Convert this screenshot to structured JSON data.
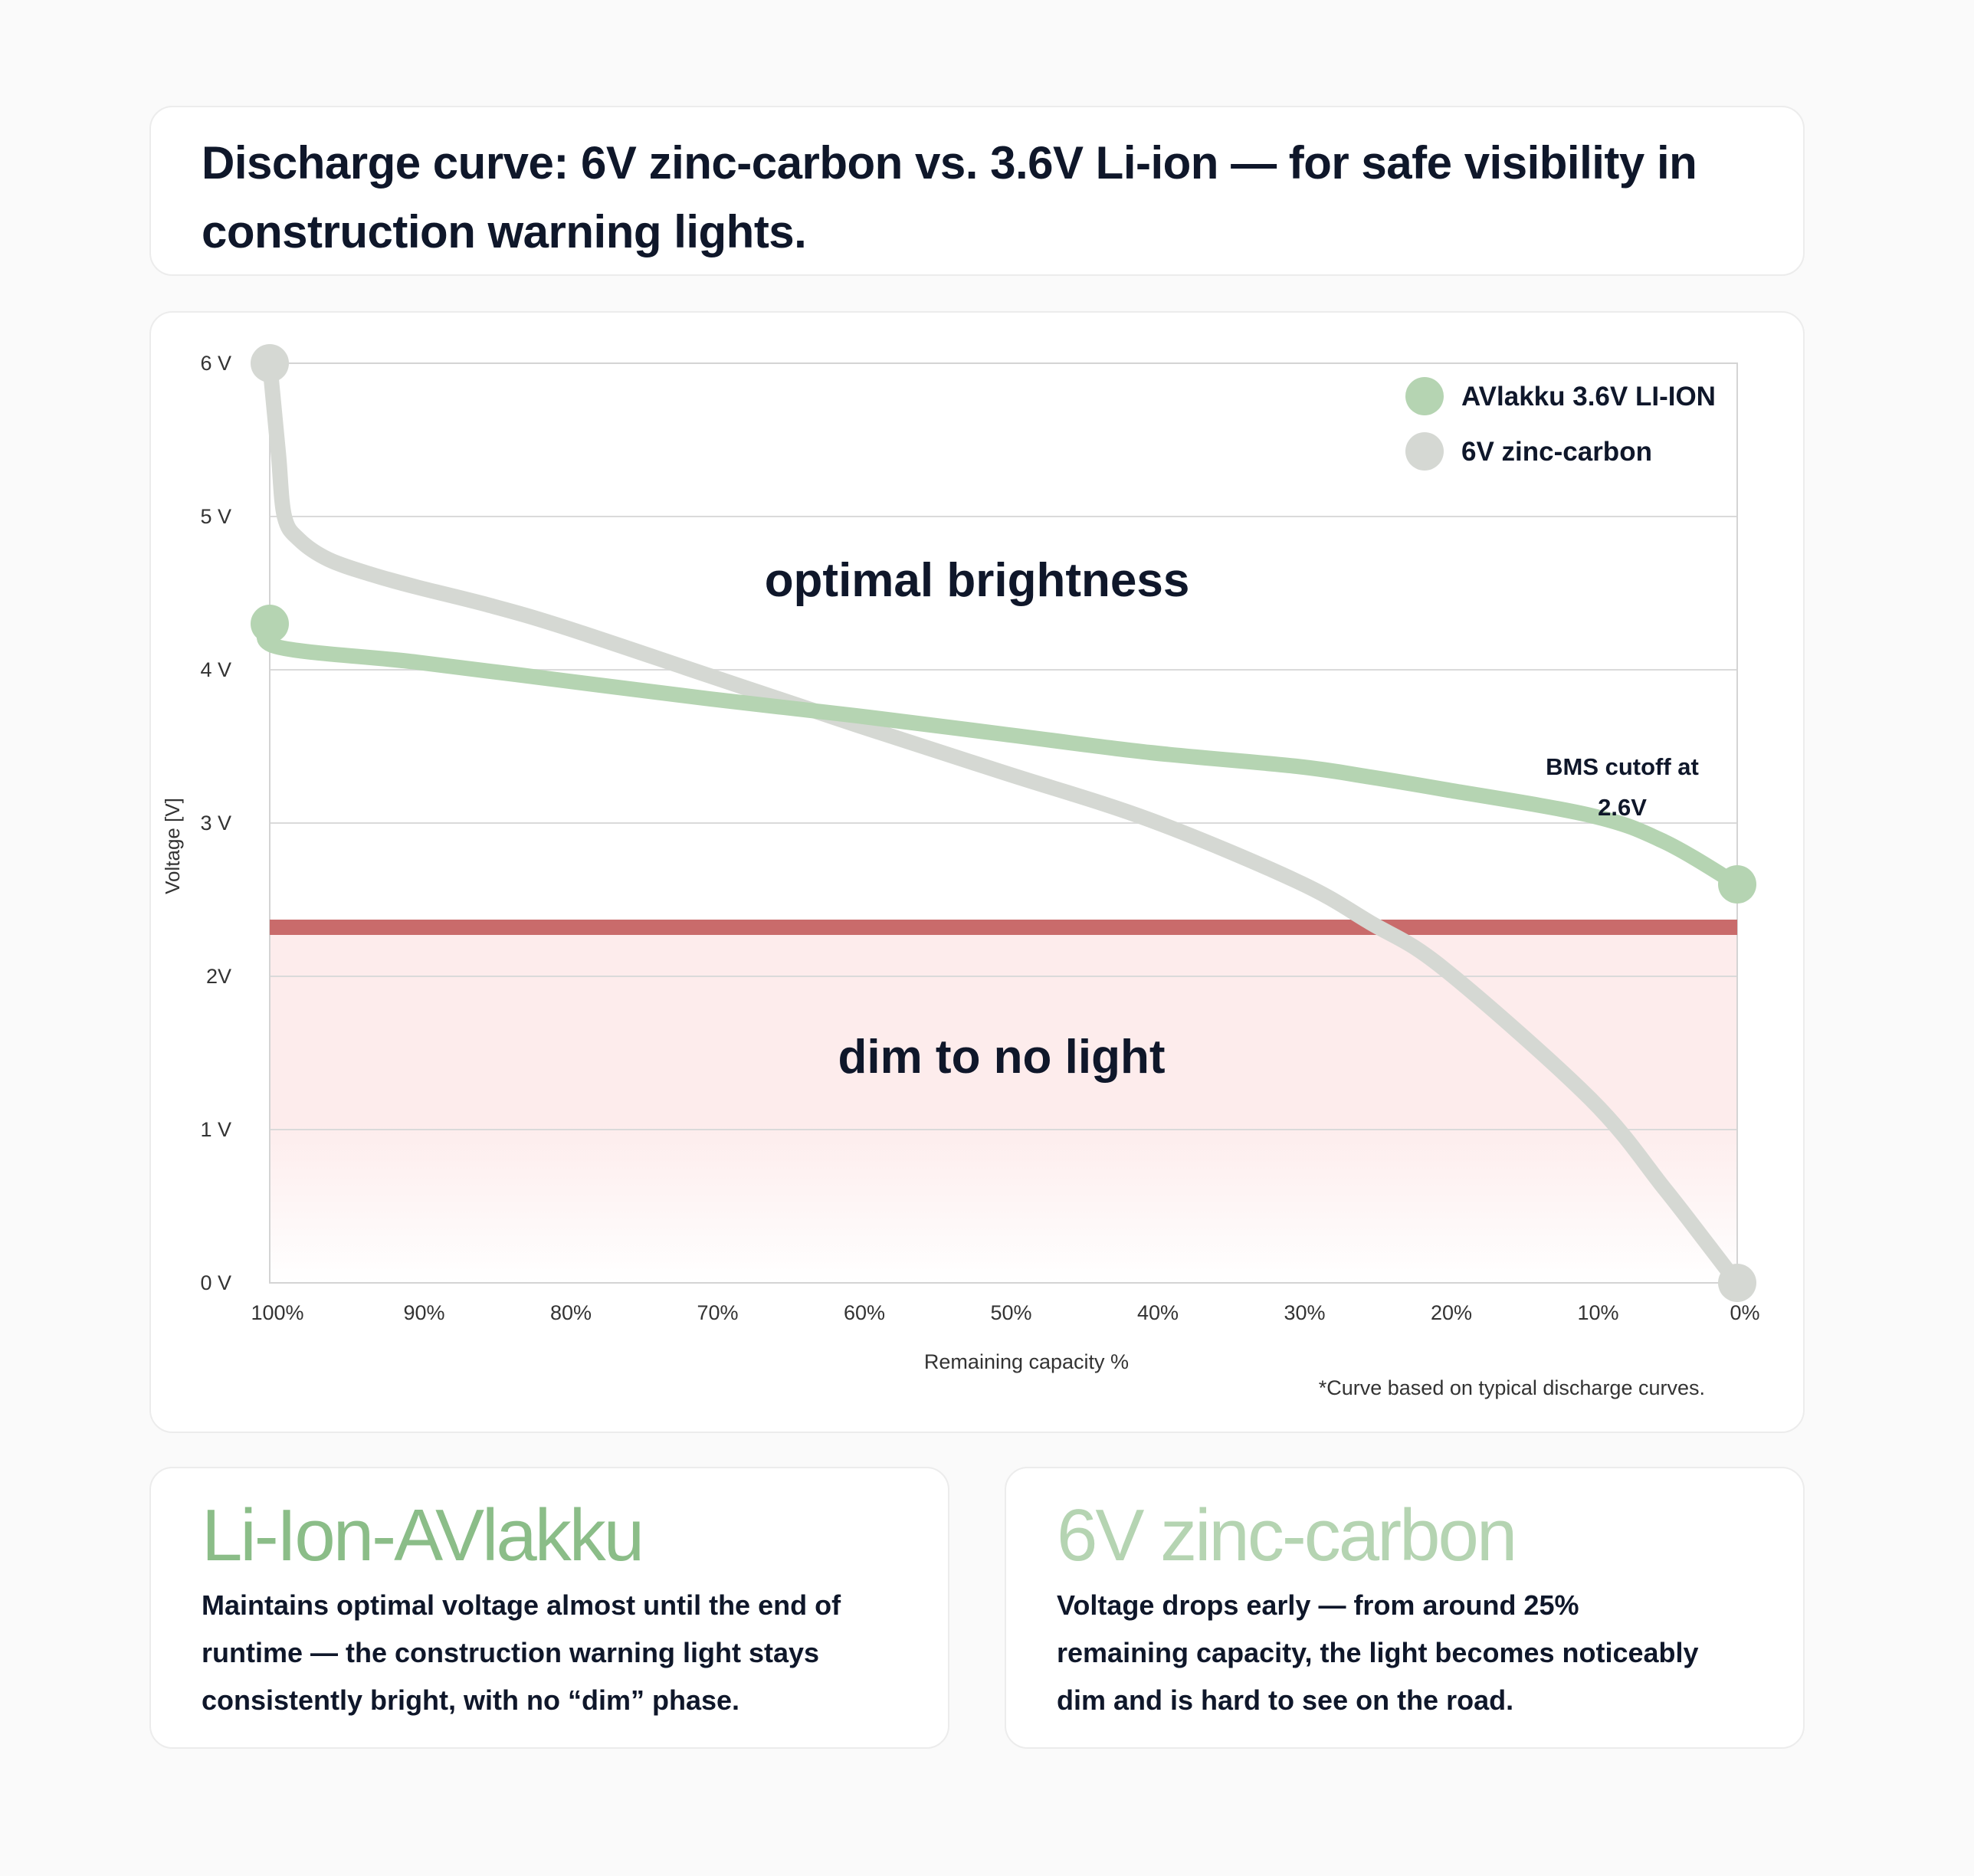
{
  "title": "Discharge curve: 6V zinc-carbon vs. 3.6V Li-ion — for safe visibility in construction warning lights.",
  "chart_data": {
    "type": "line",
    "xlabel": "Remaining capacity %",
    "ylabel": "Voltage [V]",
    "x_ticks": [
      "100%",
      "90%",
      "80%",
      "70%",
      "60%",
      "50%",
      "40%",
      "30%",
      "20%",
      "10%",
      "0%"
    ],
    "y_ticks": [
      {
        "value": 0,
        "label": "0 V"
      },
      {
        "value": 1,
        "label": "1 V"
      },
      {
        "value": 2,
        "label": "2V"
      },
      {
        "value": 3,
        "label": "3 V"
      },
      {
        "value": 4,
        "label": "4 V"
      },
      {
        "value": 5,
        "label": "5 V"
      },
      {
        "value": 6,
        "label": "6 V"
      }
    ],
    "xlim": [
      100,
      0
    ],
    "ylim": [
      0,
      6
    ],
    "grid": true,
    "legend_position": "top-right",
    "series": [
      {
        "name": "AVlakku 3.6V LI-ION",
        "color": "#b5d4b2",
        "x": [
          100,
          99.5,
          90,
          80,
          70,
          60,
          50,
          40,
          30,
          25,
          20,
          10,
          5,
          0
        ],
        "y": [
          4.3,
          4.15,
          4.05,
          3.93,
          3.81,
          3.7,
          3.58,
          3.46,
          3.37,
          3.3,
          3.22,
          3.05,
          2.88,
          2.6
        ]
      },
      {
        "name": "6V zinc-carbon",
        "color": "#d5d8d3",
        "x": [
          100,
          99.8,
          99.4,
          99,
          98,
          96,
          93,
          90,
          85,
          80,
          70,
          60,
          50,
          40,
          30,
          25,
          20,
          10,
          5,
          2,
          0
        ],
        "y": [
          6.0,
          5.8,
          5.4,
          5.0,
          4.85,
          4.72,
          4.62,
          4.54,
          4.42,
          4.28,
          3.96,
          3.64,
          3.33,
          3.02,
          2.62,
          2.35,
          2.05,
          1.2,
          0.62,
          0.25,
          0.0
        ]
      }
    ],
    "threshold": {
      "value": 2.32,
      "color": "#c96b6b"
    },
    "zone_color": "#fdecec",
    "annotations": {
      "optimal": "optimal brightness",
      "dim": "dim to no light",
      "bms_line1": "BMS cutoff at",
      "bms_line2": "2.6V"
    },
    "footnote": "*Curve based on typical discharge curves."
  },
  "cards": {
    "liion": {
      "title": "Li-Ion-AVlakku",
      "text": "Maintains optimal voltage almost until the end of runtime — the construction warning light stays consistently bright, with no “dim” phase."
    },
    "zinc": {
      "title": "6V zinc-carbon",
      "text": "Voltage drops early — from around 25% remaining capacity, the light becomes noticeably dim and is hard to see on the road."
    }
  }
}
